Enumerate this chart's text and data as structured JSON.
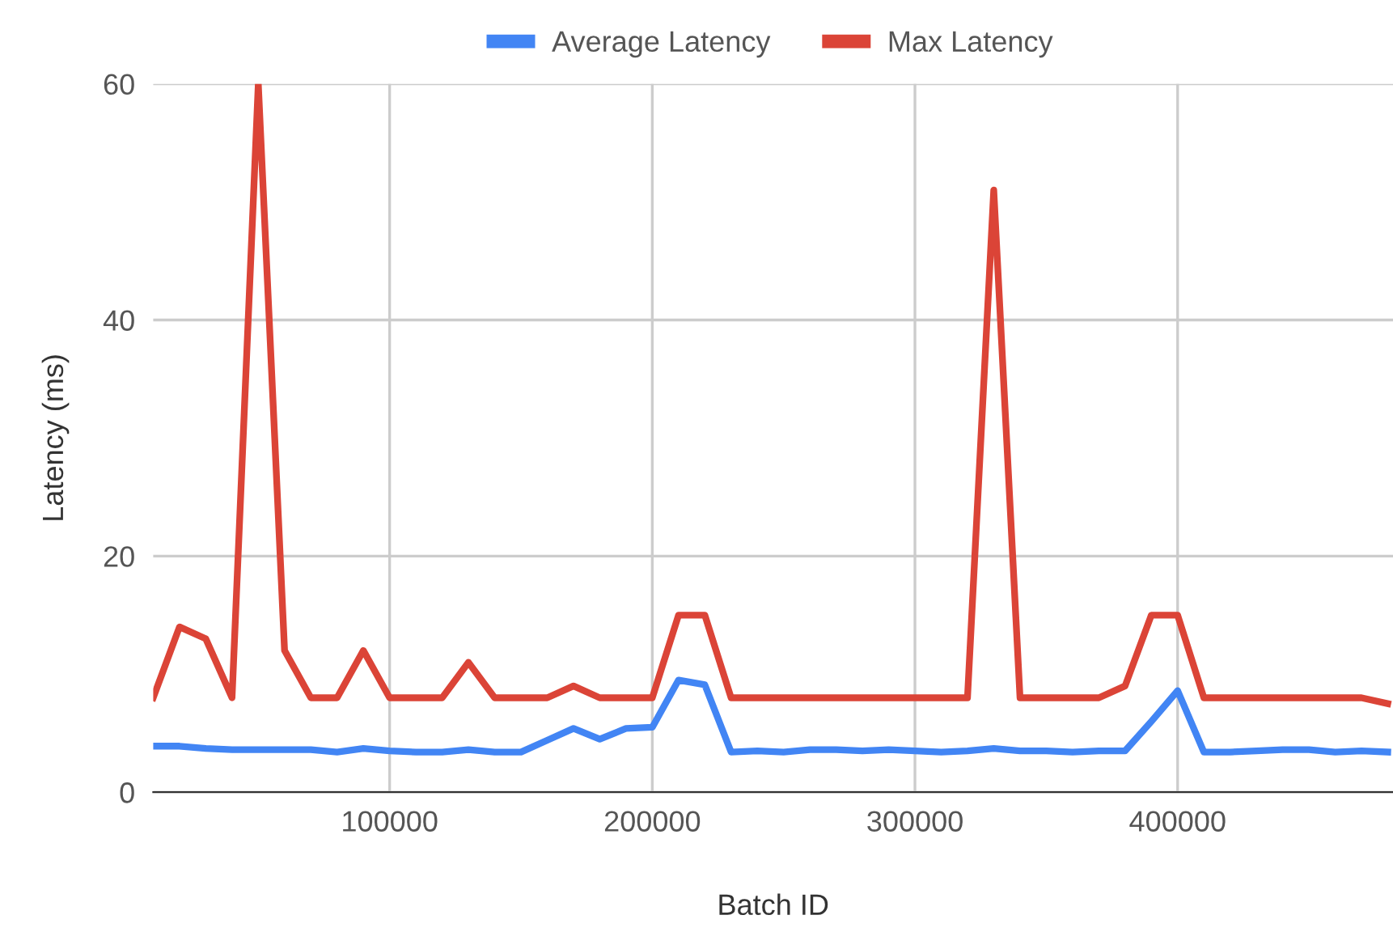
{
  "chart_data": {
    "type": "line",
    "xlabel": "Batch ID",
    "ylabel": "Latency (ms)",
    "x": [
      10000,
      20000,
      30000,
      40000,
      50000,
      60000,
      70000,
      80000,
      90000,
      100000,
      110000,
      120000,
      130000,
      140000,
      150000,
      160000,
      170000,
      180000,
      190000,
      200000,
      210000,
      220000,
      230000,
      240000,
      250000,
      260000,
      270000,
      280000,
      290000,
      300000,
      310000,
      320000,
      330000,
      340000,
      350000,
      360000,
      370000,
      380000,
      390000,
      400000,
      410000,
      420000,
      430000,
      440000,
      450000,
      460000,
      470000,
      480000
    ],
    "series": [
      {
        "name": "Average Latency",
        "color": "#4285f4",
        "values": [
          3.9,
          3.9,
          3.7,
          3.6,
          3.6,
          3.6,
          3.6,
          3.4,
          3.7,
          3.5,
          3.4,
          3.4,
          3.6,
          3.4,
          3.4,
          4.4,
          5.4,
          4.5,
          5.4,
          5.5,
          9.5,
          9.1,
          3.4,
          3.5,
          3.4,
          3.6,
          3.6,
          3.5,
          3.6,
          3.5,
          3.4,
          3.5,
          3.7,
          3.5,
          3.5,
          3.4,
          3.5,
          3.5,
          6,
          8.6,
          3.4,
          3.4,
          3.5,
          3.6,
          3.6,
          3.4,
          3.5,
          3.4
        ]
      },
      {
        "name": "Max Latency",
        "color": "#db4437",
        "values": [
          8,
          14,
          13,
          8,
          60,
          12,
          8,
          8,
          12,
          8,
          8,
          8,
          11,
          8,
          8,
          8,
          9,
          8,
          8,
          8,
          15,
          15,
          8,
          8,
          8,
          8,
          8,
          8,
          8,
          8,
          8,
          8,
          51,
          8,
          8,
          8,
          8,
          9,
          15,
          15,
          8,
          8,
          8,
          8,
          8,
          8,
          8,
          7.5
        ]
      }
    ],
    "xlim": [
      10000,
      482000
    ],
    "xticks": [
      100000,
      200000,
      300000,
      400000
    ],
    "ylim": [
      0,
      60
    ],
    "yticks": [
      0,
      20,
      40,
      60
    ],
    "grid": true,
    "legend": "top",
    "marker": "none",
    "line_style": "solid"
  }
}
